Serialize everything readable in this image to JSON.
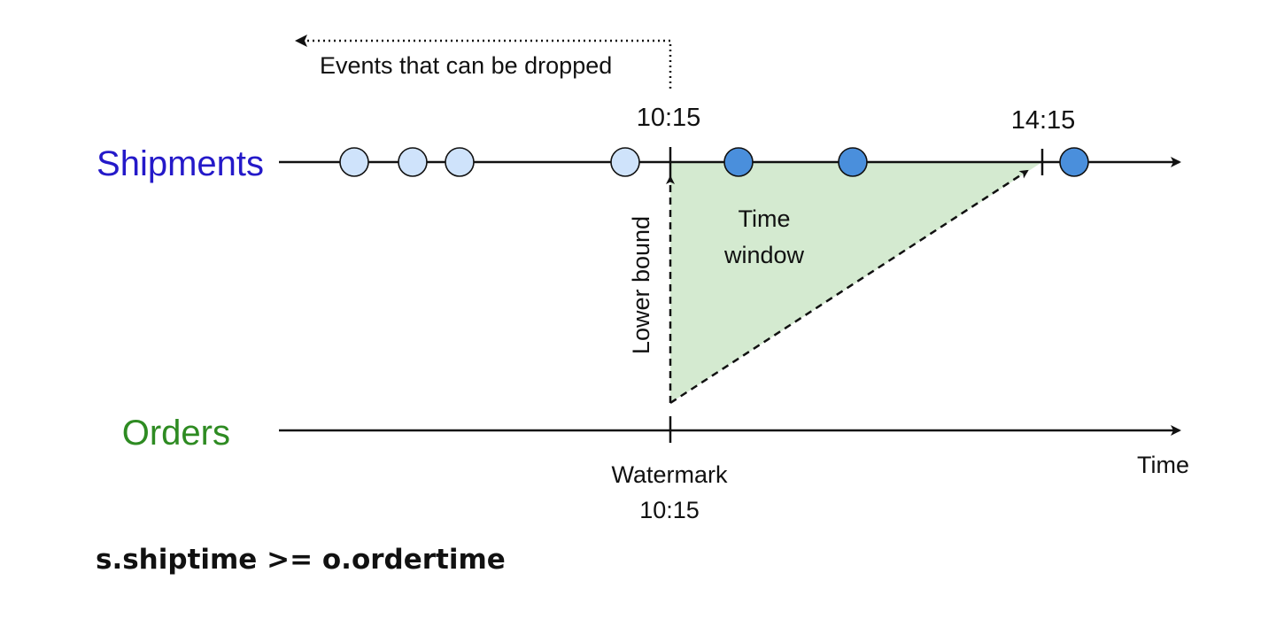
{
  "colors": {
    "shipments": "#2419c9",
    "orders": "#2e8b22",
    "event_past": "#cfe3fb",
    "event_future": "#4a8fdc",
    "window_fill": "#d4ead0",
    "line": "#111111"
  },
  "streams": {
    "shipments_label": "Shipments",
    "orders_label": "Orders"
  },
  "annotations": {
    "dropped_label": "Events that can be dropped",
    "lower_tick_label": "10:15",
    "upper_tick_label": "14:15",
    "lower_bound_label": "Lower bound",
    "window_line1": "Time",
    "window_line2": "window",
    "watermark_line1": "Watermark",
    "watermark_line2": "10:15",
    "time_axis_label": "Time"
  },
  "shipment_events": [
    {
      "state": "dropped"
    },
    {
      "state": "dropped"
    },
    {
      "state": "dropped"
    },
    {
      "state": "dropped"
    },
    {
      "state": "in-window"
    },
    {
      "state": "in-window"
    },
    {
      "state": "after-window"
    }
  ],
  "formula": "s.shiptime >= o.ordertime"
}
